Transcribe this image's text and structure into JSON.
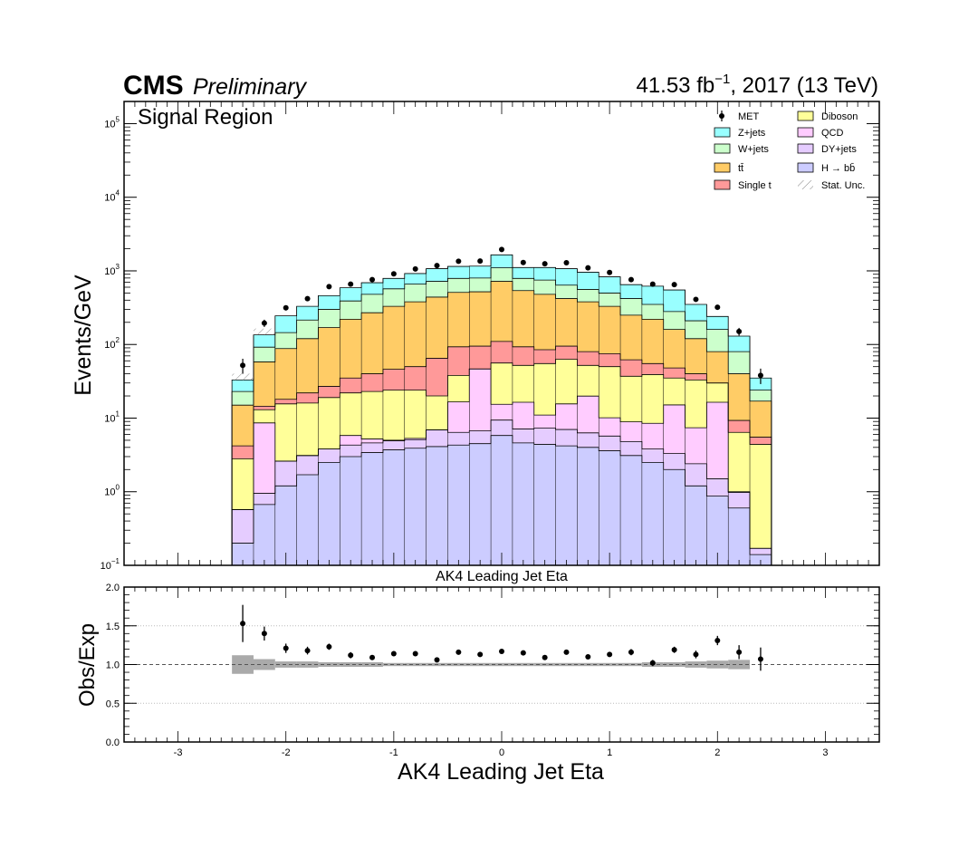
{
  "header": {
    "cms": "CMS",
    "preliminary": "Preliminary",
    "lumi_value": "41.53 fb",
    "lumi_exp": "−1",
    "lumi_rest": ", 2017 (13 TeV)"
  },
  "region_label": "Signal Region",
  "top_xlabel": "AK4 Leading Jet Eta",
  "legend": [
    {
      "name": "MET",
      "kind": "marker",
      "color": "#000000"
    },
    {
      "name": "Z+jets",
      "kind": "fill",
      "color": "#99ffff"
    },
    {
      "name": "W+jets",
      "kind": "fill",
      "color": "#ccffcc"
    },
    {
      "name": "tt̄",
      "kind": "fill",
      "color": "#ffcc66"
    },
    {
      "name": "Single t",
      "kind": "fill",
      "color": "#ff9999"
    },
    {
      "name": "Diboson",
      "kind": "fill",
      "color": "#ffff99"
    },
    {
      "name": "QCD",
      "kind": "fill",
      "color": "#ffccff"
    },
    {
      "name": "DY+jets",
      "kind": "fill",
      "color": "#e5ccff"
    },
    {
      "name": "H → bb̄",
      "kind": "fill",
      "color": "#ccccff"
    },
    {
      "name": "Stat. Unc.",
      "kind": "hatch",
      "color": "#888888"
    }
  ],
  "chart_data": [
    {
      "type": "bar",
      "subtype": "stacked-histogram-log",
      "title": "Signal Region",
      "xlabel": "AK4 Leading Jet Eta",
      "ylabel": "Events/GeV",
      "xlim": [
        -3.5,
        3.5
      ],
      "ylim": [
        0.1,
        200000
      ],
      "yscale": "log",
      "y_ticks": [
        {
          "base": "10",
          "exp": "−1",
          "value": 0.1
        },
        {
          "base": "10",
          "exp": "0",
          "value": 1
        },
        {
          "base": "10",
          "exp": "1",
          "value": 10
        },
        {
          "base": "10",
          "exp": "2",
          "value": 100
        },
        {
          "base": "10",
          "exp": "3",
          "value": 1000
        },
        {
          "base": "10",
          "exp": "4",
          "value": 10000
        },
        {
          "base": "10",
          "exp": "5",
          "value": 100000
        }
      ],
      "bin_edges": [
        -2.5,
        -2.3,
        -2.1,
        -1.9,
        -1.7,
        -1.5,
        -1.3,
        -1.1,
        -0.9,
        -0.7,
        -0.5,
        -0.3,
        -0.1,
        0.1,
        0.3,
        0.5,
        0.7,
        0.9,
        1.1,
        1.3,
        1.5,
        1.7,
        1.9,
        2.1,
        2.3,
        2.5
      ],
      "stack_order": [
        "H → bb̄",
        "DY+jets",
        "QCD",
        "Diboson",
        "Single t",
        "tt̄",
        "W+jets",
        "Z+jets"
      ],
      "cumulative_top": [
        {
          "name": "H → bb̄",
          "values": [
            0.2,
            0.67,
            1.2,
            1.7,
            2.5,
            3.0,
            3.4,
            3.7,
            3.9,
            4.1,
            4.3,
            4.5,
            5.8,
            4.6,
            4.4,
            4.2,
            4.0,
            3.6,
            3.1,
            2.5,
            2.0,
            1.2,
            0.87,
            0.6,
            0.14
          ]
        },
        {
          "name": "DY+jets",
          "values": [
            0.57,
            0.95,
            2.6,
            3.1,
            3.8,
            4.3,
            4.6,
            4.9,
            5.1,
            6.9,
            6.4,
            6.7,
            9.4,
            7.1,
            7.3,
            7.0,
            6.3,
            5.7,
            4.8,
            3.8,
            3.3,
            2.4,
            1.5,
            0.98,
            0.17
          ]
        },
        {
          "name": "QCD",
          "values": [
            0.57,
            8.6,
            2.6,
            3.1,
            3.8,
            5.8,
            5.2,
            5.0,
            5.3,
            6.9,
            16.6,
            46.5,
            15.4,
            16.4,
            11.0,
            15.6,
            19.9,
            10.1,
            8.9,
            8.5,
            15.1,
            7.4,
            16.4,
            1.0,
            0.17
          ]
        },
        {
          "name": "Diboson",
          "values": [
            2.8,
            13.0,
            15.6,
            16.0,
            19.0,
            22.0,
            23.0,
            24.0,
            24.0,
            20.0,
            38.0,
            46.5,
            56.0,
            52.0,
            55.0,
            63.0,
            52.0,
            50.0,
            37.0,
            39.0,
            35.0,
            33.0,
            30.0,
            6.4,
            4.4
          ]
        },
        {
          "name": "Single t",
          "values": [
            4.2,
            14.5,
            18.0,
            22.0,
            27.0,
            35.0,
            40.0,
            46.0,
            50.0,
            65.0,
            93.0,
            95.0,
            110.0,
            93.0,
            85.0,
            95.0,
            80.0,
            75.0,
            62.0,
            55.0,
            48.0,
            40.0,
            30.0,
            9.3,
            5.5
          ]
        },
        {
          "name": "tt̄",
          "values": [
            15.0,
            58.0,
            88.0,
            120.0,
            170.0,
            220.0,
            270.0,
            330.0,
            380.0,
            440.0,
            510.0,
            520.0,
            720.0,
            540.0,
            480.0,
            420.0,
            380.0,
            330.0,
            250.0,
            220.0,
            160.0,
            120.0,
            80.0,
            40.0,
            17.0
          ]
        },
        {
          "name": "W+jets",
          "values": [
            23.0,
            92.0,
            145.0,
            215.0,
            300.0,
            390.0,
            480.0,
            570.0,
            660.0,
            720.0,
            790.0,
            800.0,
            1100.0,
            790.0,
            750.0,
            640.0,
            560.0,
            500.0,
            420.0,
            350.0,
            280.0,
            210.0,
            160.0,
            80.0,
            24.0
          ]
        },
        {
          "name": "Z+jets",
          "values": [
            33.0,
            135.0,
            245.0,
            330.0,
            460.0,
            590.0,
            690.0,
            790.0,
            920.0,
            1070.0,
            1150.0,
            1160.0,
            1650.0,
            1110.0,
            1110.0,
            1070.0,
            960.0,
            830.0,
            650.0,
            620.0,
            550.0,
            350.0,
            240.0,
            130.0,
            35.0
          ]
        }
      ],
      "data_points": {
        "name": "MET",
        "x": [
          -2.4,
          -2.2,
          -2.0,
          -1.8,
          -1.6,
          -1.4,
          -1.2,
          -1.0,
          -0.8,
          -0.6,
          -0.4,
          -0.2,
          0.0,
          0.2,
          0.4,
          0.6,
          0.8,
          1.0,
          1.2,
          1.4,
          1.6,
          1.8,
          2.0,
          2.2,
          2.4
        ],
        "y": [
          52,
          195,
          315,
          420,
          610,
          660,
          760,
          910,
          1060,
          1180,
          1350,
          1360,
          1950,
          1300,
          1250,
          1290,
          1100,
          950,
          760,
          660,
          650,
          410,
          320,
          150,
          38
        ],
        "yerr_up": [
          12,
          22,
          25,
          28,
          30,
          30,
          30,
          35,
          38,
          40,
          40,
          40,
          50,
          38,
          38,
          38,
          35,
          33,
          30,
          30,
          30,
          25,
          25,
          18,
          9
        ]
      }
    },
    {
      "type": "scatter",
      "subtype": "ratio",
      "ylabel": "Obs/Exp",
      "xlabel": "AK4 Leading Jet Eta",
      "xlim": [
        -3.5,
        3.5
      ],
      "ylim": [
        0.0,
        2.0
      ],
      "x_ticks": [
        "-3",
        "-2",
        "-1",
        "0",
        "1",
        "2",
        "3"
      ],
      "y_ticks": [
        "0.0",
        "0.5",
        "1.0",
        "1.5",
        "2.0"
      ],
      "reference_line": 1.0,
      "x": [
        -2.4,
        -2.2,
        -2.0,
        -1.8,
        -1.6,
        -1.4,
        -1.2,
        -1.0,
        -0.8,
        -0.6,
        -0.4,
        -0.2,
        0.0,
        0.2,
        0.4,
        0.6,
        0.8,
        1.0,
        1.2,
        1.4,
        1.6,
        1.8,
        2.0,
        2.2,
        2.4
      ],
      "y": [
        1.53,
        1.4,
        1.21,
        1.18,
        1.23,
        1.12,
        1.09,
        1.14,
        1.14,
        1.06,
        1.16,
        1.13,
        1.17,
        1.15,
        1.09,
        1.16,
        1.1,
        1.13,
        1.16,
        1.02,
        1.19,
        1.13,
        1.31,
        1.16,
        1.07
      ],
      "yerr": [
        0.24,
        0.09,
        0.06,
        0.05,
        0.04,
        0.04,
        0.03,
        0.03,
        0.03,
        0.03,
        0.03,
        0.03,
        0.02,
        0.03,
        0.03,
        0.03,
        0.03,
        0.03,
        0.04,
        0.04,
        0.04,
        0.05,
        0.06,
        0.09,
        0.15
      ],
      "unc_band": [
        0.12,
        0.07,
        0.04,
        0.04,
        0.03,
        0.03,
        0.03,
        0.02,
        0.02,
        0.02,
        0.02,
        0.02,
        0.02,
        0.02,
        0.02,
        0.02,
        0.02,
        0.02,
        0.02,
        0.03,
        0.03,
        0.04,
        0.05,
        0.06,
        0.0
      ]
    }
  ]
}
